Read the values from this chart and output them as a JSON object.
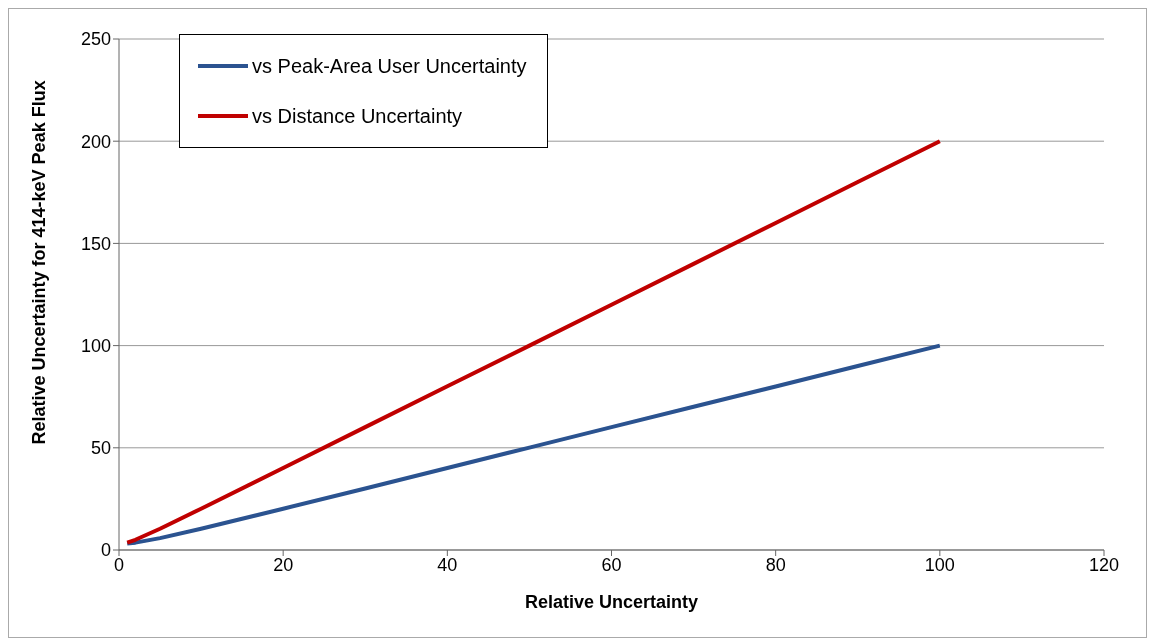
{
  "chart_data": {
    "type": "line",
    "xlabel": "Relative Uncertainty",
    "ylabel": "Relative Uncertainty  for 414-keV Peak Flux",
    "x": [
      1,
      2,
      5,
      10,
      20,
      30,
      40,
      50,
      60,
      70,
      80,
      90,
      100
    ],
    "series": [
      {
        "name": "vs Peak-Area User Uncertainty",
        "color": "#2b5390",
        "values": [
          3.2,
          3.6,
          5.8,
          10.4,
          20.2,
          30.1,
          40.1,
          50.1,
          60.1,
          70.1,
          80,
          90,
          100
        ]
      },
      {
        "name": "vs Distance Uncertainty",
        "color": "#c00000",
        "values": [
          3.6,
          5,
          10.4,
          20.2,
          40.1,
          60.1,
          80.1,
          100,
          120,
          140,
          160,
          180,
          200
        ]
      }
    ],
    "xlim": [
      0,
      120
    ],
    "xticks": [
      0,
      20,
      40,
      60,
      80,
      100,
      120
    ],
    "ylim": [
      0,
      250
    ],
    "yticks": [
      0,
      50,
      100,
      150,
      200,
      250
    ],
    "grid": "y",
    "legend": "top left",
    "marker": "none",
    "line_style": "solid"
  }
}
